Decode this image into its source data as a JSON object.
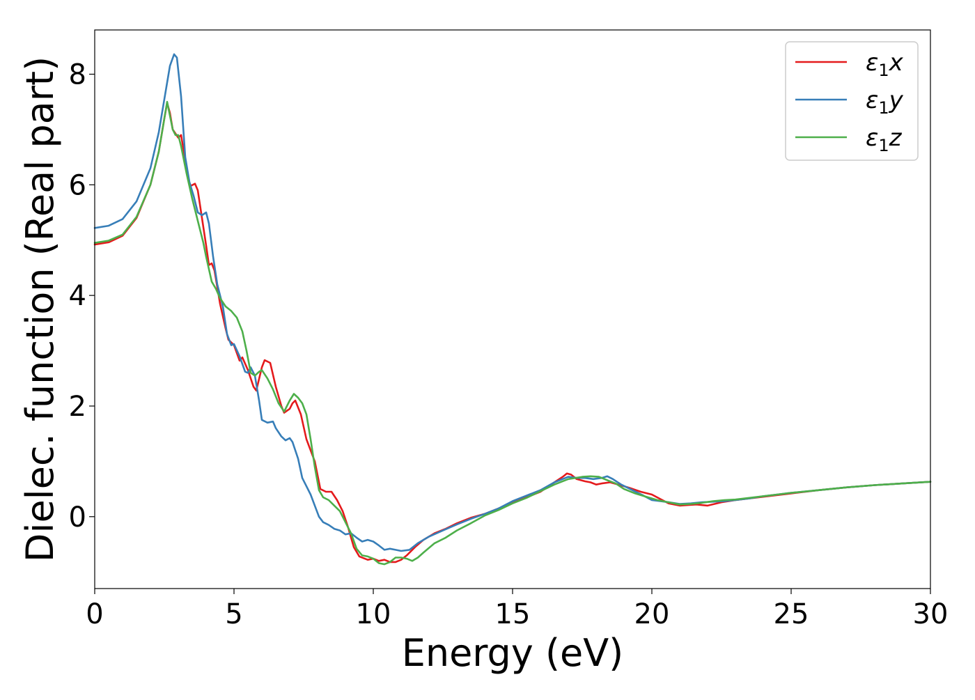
{
  "chart_data": {
    "type": "line",
    "title": "",
    "xlabel": "Energy (eV)",
    "ylabel": "Dielec. function (Real part)",
    "xlim": [
      0,
      30
    ],
    "ylim": [
      -1.3,
      8.8
    ],
    "xticks": [
      0,
      5,
      10,
      15,
      20,
      25,
      30
    ],
    "yticks": [
      0,
      2,
      4,
      6,
      8
    ],
    "grid": false,
    "legend_position": "top-right",
    "series": [
      {
        "name": "ε₁x",
        "label_main": "ε",
        "label_sub": "1",
        "label_suffix": "x",
        "color": "#e41a1c",
        "points": [
          [
            0,
            4.92
          ],
          [
            0.5,
            4.96
          ],
          [
            1.0,
            5.08
          ],
          [
            1.5,
            5.4
          ],
          [
            2.0,
            6.0
          ],
          [
            2.3,
            6.6
          ],
          [
            2.5,
            7.2
          ],
          [
            2.6,
            7.48
          ],
          [
            2.7,
            7.3
          ],
          [
            2.8,
            7.0
          ],
          [
            3.0,
            6.85
          ],
          [
            3.1,
            6.9
          ],
          [
            3.2,
            6.6
          ],
          [
            3.35,
            6.1
          ],
          [
            3.45,
            5.98
          ],
          [
            3.6,
            6.02
          ],
          [
            3.7,
            5.9
          ],
          [
            3.85,
            5.4
          ],
          [
            4.0,
            4.9
          ],
          [
            4.1,
            4.55
          ],
          [
            4.2,
            4.58
          ],
          [
            4.3,
            4.45
          ],
          [
            4.5,
            3.85
          ],
          [
            4.7,
            3.4
          ],
          [
            4.8,
            3.2
          ],
          [
            5.0,
            3.1
          ],
          [
            5.2,
            2.82
          ],
          [
            5.3,
            2.88
          ],
          [
            5.5,
            2.65
          ],
          [
            5.7,
            2.35
          ],
          [
            5.8,
            2.28
          ],
          [
            6.0,
            2.7
          ],
          [
            6.1,
            2.83
          ],
          [
            6.3,
            2.78
          ],
          [
            6.5,
            2.35
          ],
          [
            6.7,
            2.0
          ],
          [
            6.8,
            1.88
          ],
          [
            7.0,
            1.95
          ],
          [
            7.1,
            2.05
          ],
          [
            7.2,
            2.1
          ],
          [
            7.4,
            1.85
          ],
          [
            7.6,
            1.4
          ],
          [
            7.9,
            1.0
          ],
          [
            8.1,
            0.5
          ],
          [
            8.3,
            0.45
          ],
          [
            8.5,
            0.45
          ],
          [
            8.7,
            0.3
          ],
          [
            8.9,
            0.1
          ],
          [
            9.1,
            -0.2
          ],
          [
            9.3,
            -0.55
          ],
          [
            9.5,
            -0.72
          ],
          [
            9.8,
            -0.78
          ],
          [
            10.0,
            -0.76
          ],
          [
            10.2,
            -0.8
          ],
          [
            10.4,
            -0.78
          ],
          [
            10.6,
            -0.82
          ],
          [
            10.8,
            -0.82
          ],
          [
            11.0,
            -0.78
          ],
          [
            11.2,
            -0.7
          ],
          [
            11.5,
            -0.55
          ],
          [
            11.8,
            -0.42
          ],
          [
            12.2,
            -0.3
          ],
          [
            12.6,
            -0.22
          ],
          [
            13.0,
            -0.12
          ],
          [
            13.5,
            -0.02
          ],
          [
            14.0,
            0.05
          ],
          [
            14.5,
            0.15
          ],
          [
            15.0,
            0.25
          ],
          [
            15.5,
            0.35
          ],
          [
            16.0,
            0.45
          ],
          [
            16.5,
            0.62
          ],
          [
            16.8,
            0.72
          ],
          [
            16.95,
            0.78
          ],
          [
            17.1,
            0.76
          ],
          [
            17.3,
            0.68
          ],
          [
            17.6,
            0.64
          ],
          [
            17.8,
            0.62
          ],
          [
            18.0,
            0.58
          ],
          [
            18.2,
            0.6
          ],
          [
            18.5,
            0.62
          ],
          [
            18.8,
            0.58
          ],
          [
            19.2,
            0.52
          ],
          [
            19.6,
            0.45
          ],
          [
            20.0,
            0.4
          ],
          [
            20.3,
            0.32
          ],
          [
            20.6,
            0.24
          ],
          [
            21.0,
            0.2
          ],
          [
            21.3,
            0.21
          ],
          [
            21.6,
            0.22
          ],
          [
            22.0,
            0.2
          ],
          [
            22.5,
            0.26
          ],
          [
            23.0,
            0.3
          ],
          [
            23.5,
            0.33
          ],
          [
            24.0,
            0.36
          ],
          [
            24.5,
            0.39
          ],
          [
            25.0,
            0.42
          ],
          [
            26.0,
            0.48
          ],
          [
            27.0,
            0.53
          ],
          [
            28.0,
            0.57
          ],
          [
            29.0,
            0.6
          ],
          [
            30.0,
            0.63
          ]
        ]
      },
      {
        "name": "ε₁y",
        "label_main": "ε",
        "label_sub": "1",
        "label_suffix": "y",
        "color": "#377eb8",
        "points": [
          [
            0,
            5.22
          ],
          [
            0.5,
            5.26
          ],
          [
            1.0,
            5.38
          ],
          [
            1.5,
            5.7
          ],
          [
            2.0,
            6.3
          ],
          [
            2.3,
            6.95
          ],
          [
            2.5,
            7.55
          ],
          [
            2.7,
            8.15
          ],
          [
            2.85,
            8.36
          ],
          [
            2.95,
            8.3
          ],
          [
            3.1,
            7.6
          ],
          [
            3.25,
            6.5
          ],
          [
            3.4,
            6.05
          ],
          [
            3.55,
            5.8
          ],
          [
            3.7,
            5.5
          ],
          [
            3.85,
            5.45
          ],
          [
            4.0,
            5.5
          ],
          [
            4.1,
            5.3
          ],
          [
            4.25,
            4.7
          ],
          [
            4.4,
            4.2
          ],
          [
            4.6,
            3.8
          ],
          [
            4.75,
            3.3
          ],
          [
            4.9,
            3.1
          ],
          [
            5.0,
            3.12
          ],
          [
            5.2,
            2.9
          ],
          [
            5.4,
            2.62
          ],
          [
            5.5,
            2.6
          ],
          [
            5.6,
            2.7
          ],
          [
            5.75,
            2.55
          ],
          [
            5.9,
            2.1
          ],
          [
            6.0,
            1.75
          ],
          [
            6.2,
            1.7
          ],
          [
            6.4,
            1.72
          ],
          [
            6.5,
            1.6
          ],
          [
            6.7,
            1.45
          ],
          [
            6.85,
            1.38
          ],
          [
            7.0,
            1.42
          ],
          [
            7.1,
            1.35
          ],
          [
            7.3,
            1.05
          ],
          [
            7.45,
            0.7
          ],
          [
            7.6,
            0.55
          ],
          [
            7.75,
            0.4
          ],
          [
            7.9,
            0.2
          ],
          [
            8.05,
            0.0
          ],
          [
            8.2,
            -0.1
          ],
          [
            8.4,
            -0.15
          ],
          [
            8.6,
            -0.22
          ],
          [
            8.8,
            -0.25
          ],
          [
            9.0,
            -0.32
          ],
          [
            9.2,
            -0.3
          ],
          [
            9.4,
            -0.38
          ],
          [
            9.6,
            -0.45
          ],
          [
            9.8,
            -0.42
          ],
          [
            10.0,
            -0.45
          ],
          [
            10.2,
            -0.52
          ],
          [
            10.4,
            -0.6
          ],
          [
            10.6,
            -0.58
          ],
          [
            10.8,
            -0.6
          ],
          [
            11.0,
            -0.62
          ],
          [
            11.3,
            -0.6
          ],
          [
            11.6,
            -0.48
          ],
          [
            12.0,
            -0.36
          ],
          [
            12.5,
            -0.25
          ],
          [
            13.0,
            -0.14
          ],
          [
            13.5,
            -0.04
          ],
          [
            14.0,
            0.05
          ],
          [
            14.5,
            0.15
          ],
          [
            15.0,
            0.28
          ],
          [
            15.5,
            0.38
          ],
          [
            16.0,
            0.48
          ],
          [
            16.5,
            0.62
          ],
          [
            17.0,
            0.72
          ],
          [
            17.3,
            0.7
          ],
          [
            17.6,
            0.7
          ],
          [
            17.9,
            0.68
          ],
          [
            18.2,
            0.7
          ],
          [
            18.4,
            0.73
          ],
          [
            18.6,
            0.68
          ],
          [
            18.9,
            0.58
          ],
          [
            19.3,
            0.48
          ],
          [
            19.7,
            0.38
          ],
          [
            20.0,
            0.3
          ],
          [
            20.3,
            0.28
          ],
          [
            20.6,
            0.26
          ],
          [
            21.0,
            0.23
          ],
          [
            21.4,
            0.24
          ],
          [
            21.8,
            0.26
          ],
          [
            22.2,
            0.27
          ],
          [
            22.6,
            0.28
          ],
          [
            23.0,
            0.3
          ],
          [
            23.5,
            0.33
          ],
          [
            24.0,
            0.37
          ],
          [
            24.5,
            0.4
          ],
          [
            25.0,
            0.43
          ],
          [
            26.0,
            0.48
          ],
          [
            27.0,
            0.53
          ],
          [
            28.0,
            0.57
          ],
          [
            29.0,
            0.6
          ],
          [
            30.0,
            0.63
          ]
        ]
      },
      {
        "name": "ε₁z",
        "label_main": "ε",
        "label_sub": "1",
        "label_suffix": "z",
        "color": "#4daf4a",
        "points": [
          [
            0,
            4.95
          ],
          [
            0.5,
            4.99
          ],
          [
            1.0,
            5.1
          ],
          [
            1.5,
            5.42
          ],
          [
            2.0,
            6.0
          ],
          [
            2.3,
            6.6
          ],
          [
            2.5,
            7.2
          ],
          [
            2.6,
            7.5
          ],
          [
            2.7,
            7.25
          ],
          [
            2.8,
            7.0
          ],
          [
            2.9,
            6.9
          ],
          [
            3.0,
            6.9
          ],
          [
            3.1,
            6.7
          ],
          [
            3.3,
            6.2
          ],
          [
            3.5,
            5.75
          ],
          [
            3.7,
            5.35
          ],
          [
            3.9,
            4.95
          ],
          [
            4.0,
            4.7
          ],
          [
            4.2,
            4.25
          ],
          [
            4.35,
            4.12
          ],
          [
            4.5,
            3.95
          ],
          [
            4.7,
            3.8
          ],
          [
            4.9,
            3.72
          ],
          [
            5.1,
            3.6
          ],
          [
            5.3,
            3.35
          ],
          [
            5.45,
            3.0
          ],
          [
            5.6,
            2.6
          ],
          [
            5.75,
            2.55
          ],
          [
            5.9,
            2.62
          ],
          [
            6.0,
            2.65
          ],
          [
            6.2,
            2.5
          ],
          [
            6.4,
            2.3
          ],
          [
            6.6,
            2.05
          ],
          [
            6.8,
            1.9
          ],
          [
            7.0,
            2.1
          ],
          [
            7.15,
            2.22
          ],
          [
            7.3,
            2.15
          ],
          [
            7.45,
            2.05
          ],
          [
            7.6,
            1.85
          ],
          [
            7.75,
            1.4
          ],
          [
            7.9,
            0.9
          ],
          [
            8.05,
            0.48
          ],
          [
            8.2,
            0.35
          ],
          [
            8.4,
            0.3
          ],
          [
            8.6,
            0.2
          ],
          [
            8.8,
            0.1
          ],
          [
            9.0,
            -0.1
          ],
          [
            9.2,
            -0.3
          ],
          [
            9.4,
            -0.58
          ],
          [
            9.6,
            -0.7
          ],
          [
            9.8,
            -0.72
          ],
          [
            10.0,
            -0.76
          ],
          [
            10.2,
            -0.84
          ],
          [
            10.4,
            -0.86
          ],
          [
            10.6,
            -0.82
          ],
          [
            10.8,
            -0.74
          ],
          [
            11.0,
            -0.74
          ],
          [
            11.2,
            -0.76
          ],
          [
            11.4,
            -0.8
          ],
          [
            11.6,
            -0.74
          ],
          [
            11.8,
            -0.65
          ],
          [
            12.2,
            -0.48
          ],
          [
            12.6,
            -0.38
          ],
          [
            13.0,
            -0.25
          ],
          [
            13.5,
            -0.12
          ],
          [
            14.0,
            0.02
          ],
          [
            14.5,
            0.12
          ],
          [
            15.0,
            0.24
          ],
          [
            15.5,
            0.34
          ],
          [
            16.0,
            0.46
          ],
          [
            16.5,
            0.58
          ],
          [
            17.0,
            0.68
          ],
          [
            17.5,
            0.72
          ],
          [
            17.8,
            0.73
          ],
          [
            18.1,
            0.72
          ],
          [
            18.4,
            0.66
          ],
          [
            18.7,
            0.6
          ],
          [
            19.0,
            0.5
          ],
          [
            19.4,
            0.42
          ],
          [
            19.8,
            0.36
          ],
          [
            20.2,
            0.3
          ],
          [
            20.6,
            0.26
          ],
          [
            21.0,
            0.22
          ],
          [
            21.4,
            0.23
          ],
          [
            21.8,
            0.25
          ],
          [
            22.2,
            0.28
          ],
          [
            22.6,
            0.3
          ],
          [
            23.0,
            0.31
          ],
          [
            23.5,
            0.34
          ],
          [
            24.0,
            0.37
          ],
          [
            24.5,
            0.4
          ],
          [
            25.0,
            0.43
          ],
          [
            26.0,
            0.48
          ],
          [
            27.0,
            0.53
          ],
          [
            28.0,
            0.57
          ],
          [
            29.0,
            0.6
          ],
          [
            30.0,
            0.63
          ]
        ]
      }
    ]
  }
}
